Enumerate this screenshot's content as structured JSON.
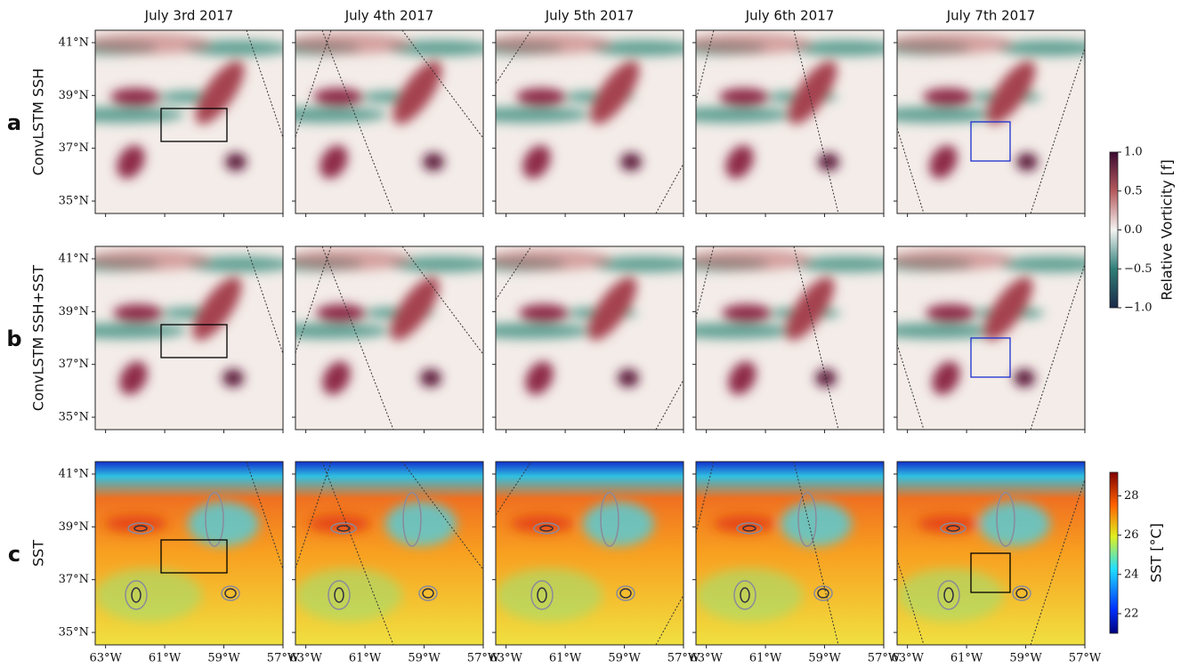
{
  "columns": [
    "July 3rd 2017",
    "July 4th 2017",
    "July 5th 2017",
    "July 6th 2017",
    "July 7th 2017"
  ],
  "rows": [
    {
      "letter": "a",
      "label": "ConvLSTM SSH"
    },
    {
      "letter": "b",
      "label": "ConvLSTM SSH+SST"
    },
    {
      "letter": "c",
      "label": "SST"
    }
  ],
  "map": {
    "xlim": [
      -63.35,
      -57.0
    ],
    "ylim": [
      34.53,
      41.47
    ],
    "xticks": [
      {
        "value": -63,
        "label": "63°W"
      },
      {
        "value": -61,
        "label": "61°W"
      },
      {
        "value": -59,
        "label": "59°W"
      },
      {
        "value": -57,
        "label": "57°W"
      }
    ],
    "yticks": [
      {
        "value": 35,
        "label": "35°N"
      },
      {
        "value": 37,
        "label": "37°N"
      },
      {
        "value": 39,
        "label": "39°N"
      },
      {
        "value": 41,
        "label": "41°N"
      }
    ]
  },
  "vorticity_colorbar": {
    "label": "Relative Vorticity [f]",
    "lim": [
      -1,
      1
    ],
    "ticks": [
      {
        "value": -1,
        "label": "−1.0"
      },
      {
        "value": -0.5,
        "label": "−0.5"
      },
      {
        "value": 0,
        "label": "0.0"
      },
      {
        "value": 0.5,
        "label": "0.5"
      },
      {
        "value": 1,
        "label": "1.0"
      }
    ]
  },
  "sst_colorbar": {
    "label": "SST [°C]",
    "lim": [
      21,
      29.2
    ],
    "ticks": [
      22,
      24,
      26,
      28
    ]
  }
}
